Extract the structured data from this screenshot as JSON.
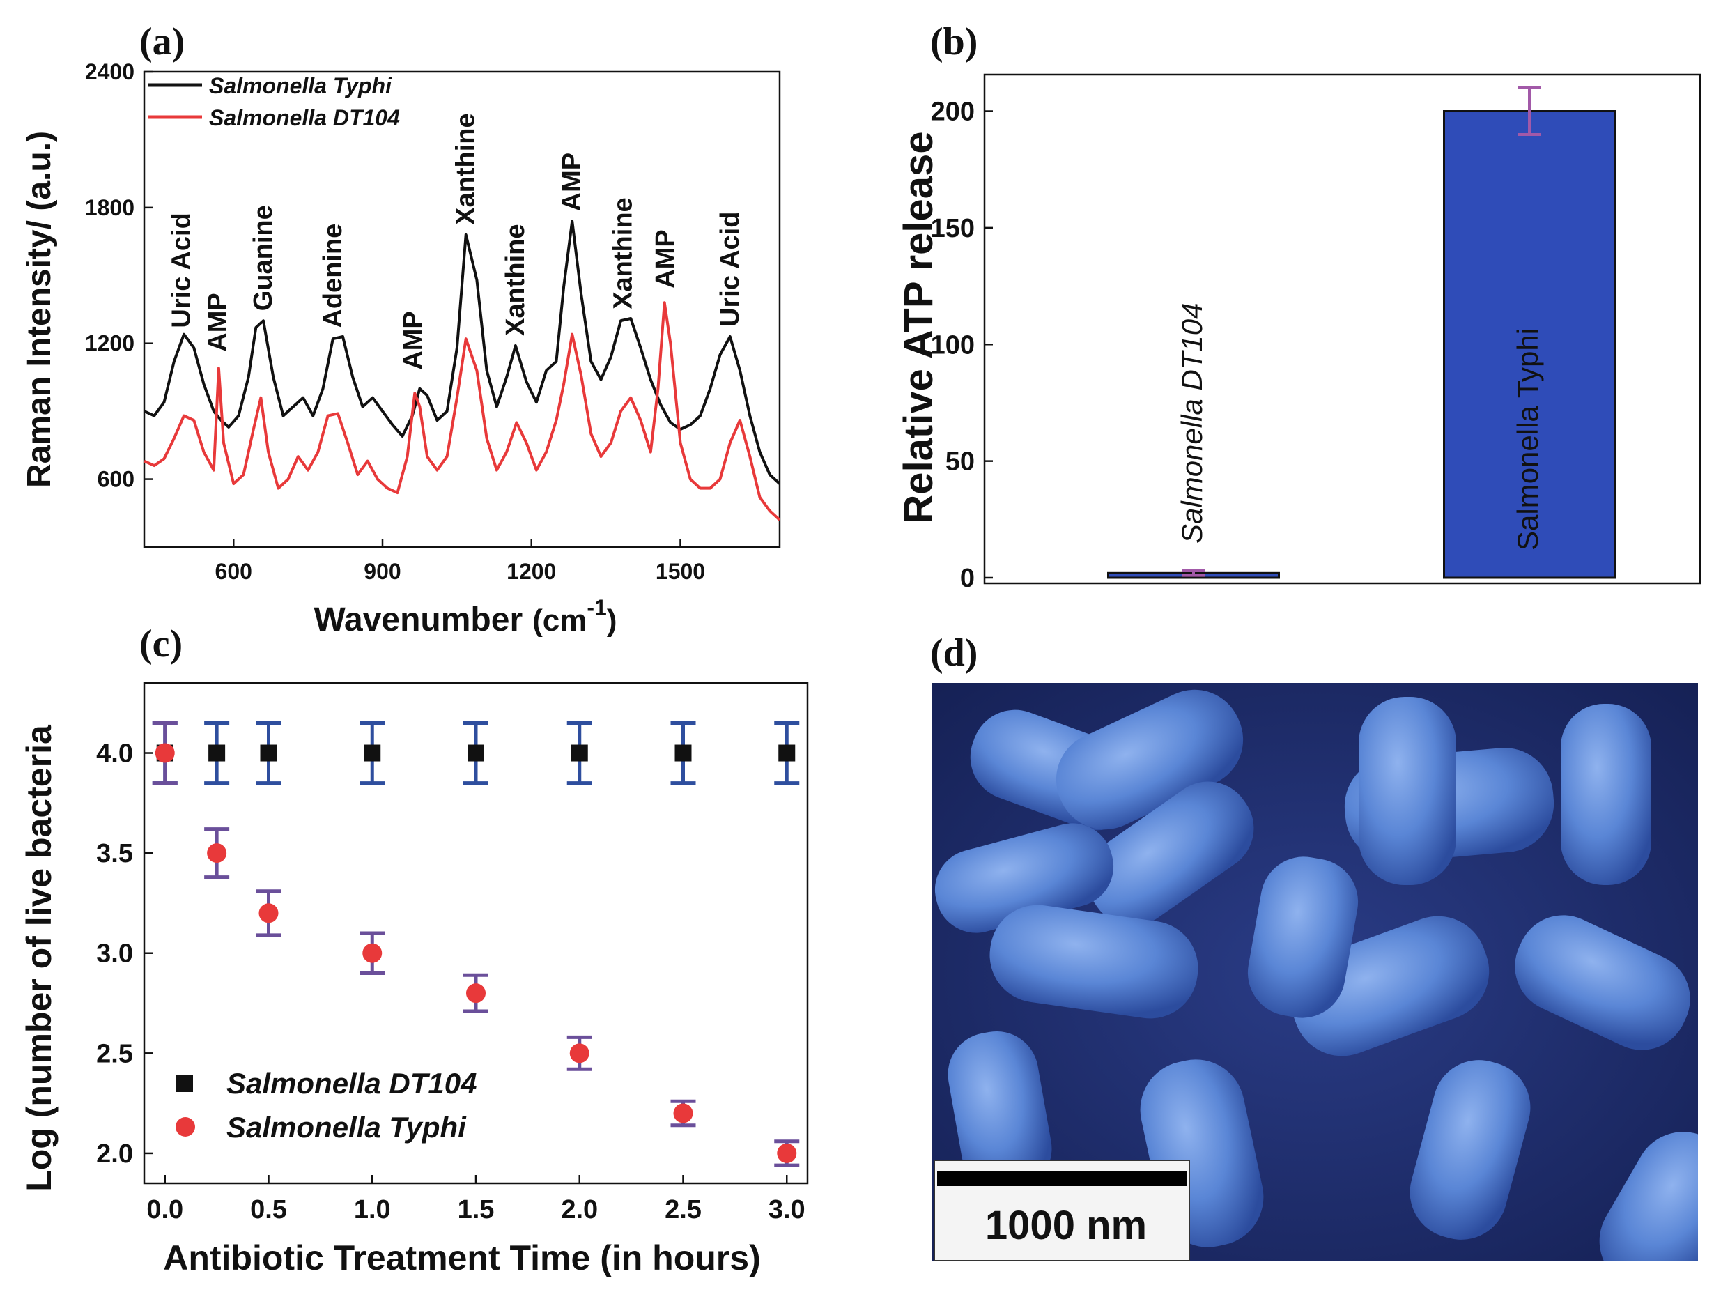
{
  "colors": {
    "black_series": "#111111",
    "red_series": "#e8393a",
    "bar_fill": "#2f4cb8",
    "error_bar_b": "#a259a8",
    "error_bar_c": "#2e4e9e",
    "error_bar_c_red": "#6a4f9a",
    "micrograph_bg": "#1d2e6e",
    "micrograph_cell": "#5a86d6"
  },
  "chart_data": [
    {
      "panel": "(a)",
      "type": "line",
      "title": "",
      "xlabel": "Wavenumber",
      "xlabel_unit": "(cm",
      "xlabel_sup": "-1",
      "xlabel_close": ")",
      "ylabel": "Raman Intensity/ (a.u.)",
      "xlim": [
        420,
        1700
      ],
      "ylim": [
        300,
        2400
      ],
      "xticks": [
        600,
        900,
        1200,
        1500
      ],
      "yticks": [
        600,
        1200,
        1800,
        2400
      ],
      "legend": "top-left",
      "series": [
        {
          "name": "Salmonella Typhi",
          "color": "#111111",
          "x": [
            420,
            440,
            460,
            480,
            500,
            520,
            540,
            560,
            575,
            590,
            610,
            630,
            645,
            660,
            680,
            700,
            720,
            740,
            760,
            780,
            800,
            820,
            840,
            860,
            880,
            900,
            920,
            940,
            960,
            975,
            990,
            1010,
            1030,
            1050,
            1068,
            1090,
            1110,
            1130,
            1150,
            1168,
            1190,
            1210,
            1230,
            1250,
            1265,
            1282,
            1300,
            1320,
            1340,
            1360,
            1380,
            1400,
            1420,
            1440,
            1460,
            1480,
            1500,
            1520,
            1540,
            1560,
            1580,
            1600,
            1620,
            1640,
            1660,
            1680,
            1700
          ],
          "y": [
            900,
            880,
            940,
            1120,
            1240,
            1180,
            1020,
            900,
            860,
            830,
            880,
            1050,
            1270,
            1300,
            1050,
            880,
            920,
            960,
            880,
            1000,
            1220,
            1230,
            1050,
            920,
            960,
            900,
            840,
            790,
            880,
            1000,
            970,
            860,
            900,
            1180,
            1680,
            1480,
            1080,
            920,
            1050,
            1190,
            1030,
            940,
            1080,
            1120,
            1450,
            1740,
            1420,
            1120,
            1040,
            1140,
            1300,
            1310,
            1180,
            1040,
            930,
            850,
            820,
            840,
            880,
            1000,
            1150,
            1230,
            1080,
            880,
            720,
            620,
            580
          ]
        },
        {
          "name": "Salmonella DT104",
          "color": "#e8393a",
          "x": [
            420,
            440,
            460,
            480,
            500,
            520,
            540,
            560,
            570,
            580,
            600,
            620,
            640,
            655,
            670,
            690,
            710,
            730,
            750,
            770,
            790,
            810,
            830,
            850,
            870,
            890,
            910,
            930,
            950,
            965,
            975,
            990,
            1010,
            1030,
            1050,
            1068,
            1090,
            1110,
            1130,
            1150,
            1170,
            1190,
            1210,
            1230,
            1250,
            1265,
            1282,
            1300,
            1320,
            1340,
            1360,
            1380,
            1400,
            1420,
            1440,
            1455,
            1468,
            1480,
            1500,
            1520,
            1540,
            1560,
            1580,
            1600,
            1620,
            1640,
            1660,
            1680,
            1700
          ],
          "y": [
            680,
            660,
            690,
            780,
            880,
            860,
            720,
            640,
            1090,
            760,
            580,
            620,
            820,
            960,
            720,
            560,
            600,
            700,
            640,
            720,
            880,
            890,
            760,
            620,
            680,
            600,
            560,
            540,
            700,
            980,
            920,
            700,
            640,
            700,
            960,
            1220,
            1080,
            780,
            640,
            720,
            850,
            760,
            640,
            720,
            860,
            1020,
            1240,
            1060,
            800,
            700,
            760,
            900,
            960,
            860,
            720,
            1000,
            1380,
            1200,
            760,
            600,
            560,
            560,
            600,
            760,
            860,
            700,
            520,
            460,
            420
          ]
        }
      ],
      "peak_labels": [
        {
          "text": "Uric Acid",
          "x": 495
        },
        {
          "text": "AMP",
          "x": 568
        },
        {
          "text": "Guanine",
          "x": 660
        },
        {
          "text": "Adenine",
          "x": 800
        },
        {
          "text": "AMP",
          "x": 962
        },
        {
          "text": "Xanthine",
          "x": 1068
        },
        {
          "text": "Xanthine",
          "x": 1168
        },
        {
          "text": "AMP",
          "x": 1282
        },
        {
          "text": "Xanthine",
          "x": 1385
        },
        {
          "text": "AMP",
          "x": 1470
        },
        {
          "text": "Uric Acid",
          "x": 1600
        }
      ]
    },
    {
      "panel": "(b)",
      "type": "bar",
      "title": "",
      "xlabel": "",
      "ylabel": "Relative ATP release",
      "ylim": [
        0,
        220
      ],
      "yticks": [
        0,
        50,
        100,
        150,
        200
      ],
      "categories": [
        "Salmonella DT104",
        "Salmonella Typhi"
      ],
      "values": [
        2,
        200
      ],
      "errors": [
        1,
        10
      ]
    },
    {
      "panel": "(c)",
      "type": "scatter",
      "title": "",
      "xlabel": "Antibiotic Treatment Time (in hours)",
      "ylabel": "Log (number of live bacteria",
      "xlim": [
        -0.1,
        3.1
      ],
      "ylim": [
        1.85,
        4.35
      ],
      "xticks": [
        0.0,
        0.5,
        1.0,
        1.5,
        2.0,
        2.5,
        3.0
      ],
      "xtick_labels": [
        "0.0",
        "0.5",
        "1.0",
        "1.5",
        "2.0",
        "2.5",
        "3.0"
      ],
      "yticks": [
        2.0,
        2.5,
        3.0,
        3.5,
        4.0
      ],
      "ytick_labels": [
        "2.0",
        "2.5",
        "3.0",
        "3.5",
        "4.0"
      ],
      "legend": "bottom-left",
      "series": [
        {
          "name": "Salmonella DT104",
          "marker": "square",
          "x": [
            0,
            0.25,
            0.5,
            1.0,
            1.5,
            2.0,
            2.5,
            3.0
          ],
          "y": [
            4.0,
            4.0,
            4.0,
            4.0,
            4.0,
            4.0,
            4.0,
            4.0
          ],
          "err": [
            0.15,
            0.15,
            0.15,
            0.15,
            0.15,
            0.15,
            0.15,
            0.15
          ]
        },
        {
          "name": "Salmonella Typhi",
          "marker": "circle",
          "x": [
            0,
            0.25,
            0.5,
            1.0,
            1.5,
            2.0,
            2.5,
            3.0
          ],
          "y": [
            4.0,
            3.5,
            3.2,
            3.0,
            2.8,
            2.5,
            2.2,
            2.0
          ],
          "err": [
            0.15,
            0.12,
            0.11,
            0.1,
            0.09,
            0.08,
            0.06,
            0.06
          ]
        }
      ]
    }
  ],
  "panels": {
    "a": "(a)",
    "b": "(b)",
    "c": "(c)",
    "d": "(d)"
  },
  "micrograph": {
    "scale_bar_label": "1000 nm"
  }
}
